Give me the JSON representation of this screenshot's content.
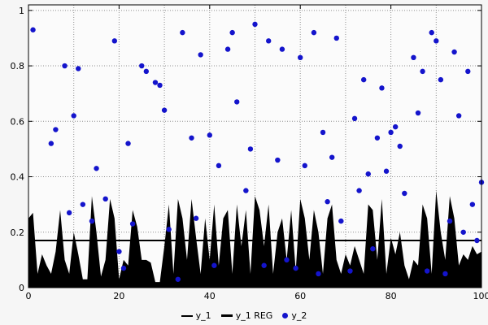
{
  "chart_data": {
    "type": "mixed",
    "subtypes": [
      "area",
      "hline",
      "scatter"
    ],
    "title": "",
    "xlabel": "",
    "ylabel": "",
    "xlim": [
      0,
      100
    ],
    "ylim": [
      0,
      1
    ],
    "y_headroom": 0.02,
    "x_ticks": [
      0,
      20,
      40,
      60,
      80,
      100
    ],
    "x_tick_labels": [
      "0",
      "20",
      "40",
      "60",
      "80",
      "100"
    ],
    "x_minor_step": 10,
    "y_ticks": [
      0,
      0.2,
      0.4,
      0.6,
      0.8,
      1
    ],
    "y_tick_labels": [
      "0",
      "0.2",
      "0.4",
      "0.6",
      "0.8",
      "1"
    ],
    "x_grid_step": 10,
    "grid": true,
    "legend_position": "bottom-center",
    "colors": {
      "page_bg": "#f6f6f6",
      "plot_bg": "#fbfbfb",
      "grid": "#909090",
      "border": "#000000",
      "area": "#000000",
      "reg_line": "#000000",
      "dots": "#1414cc",
      "text": "#000000"
    },
    "series": [
      {
        "name": "y_1",
        "type": "area",
        "color": "#000000",
        "x_start": 0,
        "x_step": 1,
        "values": [
          0.25,
          0.27,
          0.05,
          0.12,
          0.08,
          0.05,
          0.13,
          0.28,
          0.1,
          0.05,
          0.2,
          0.12,
          0.03,
          0.03,
          0.33,
          0.2,
          0.04,
          0.1,
          0.32,
          0.25,
          0.03,
          0.1,
          0.08,
          0.28,
          0.22,
          0.1,
          0.1,
          0.09,
          0.02,
          0.02,
          0.15,
          0.3,
          0.05,
          0.32,
          0.25,
          0.1,
          0.32,
          0.18,
          0.05,
          0.25,
          0.1,
          0.3,
          0.08,
          0.25,
          0.28,
          0.05,
          0.3,
          0.15,
          0.28,
          0.05,
          0.33,
          0.28,
          0.15,
          0.3,
          0.05,
          0.2,
          0.25,
          0.1,
          0.28,
          0.06,
          0.32,
          0.25,
          0.1,
          0.28,
          0.2,
          0.05,
          0.25,
          0.3,
          0.1,
          0.05,
          0.12,
          0.08,
          0.15,
          0.1,
          0.05,
          0.3,
          0.28,
          0.1,
          0.32,
          0.05,
          0.18,
          0.12,
          0.2,
          0.08,
          0.03,
          0.1,
          0.08,
          0.3,
          0.25,
          0.05,
          0.35,
          0.2,
          0.1,
          0.33,
          0.25,
          0.08,
          0.12,
          0.1,
          0.15,
          0.12,
          0.13
        ]
      },
      {
        "name": "y_1 REG",
        "type": "hline",
        "color": "#000000",
        "value": 0.17
      },
      {
        "name": "y_2",
        "type": "scatter",
        "color": "#1414cc",
        "marker": "dot",
        "point_radius": 3.2,
        "points": [
          [
            1,
            0.93
          ],
          [
            5,
            0.52
          ],
          [
            6,
            0.57
          ],
          [
            8,
            0.8
          ],
          [
            9,
            0.27
          ],
          [
            10,
            0.62
          ],
          [
            11,
            0.79
          ],
          [
            12,
            0.3
          ],
          [
            14,
            0.24
          ],
          [
            15,
            0.43
          ],
          [
            17,
            0.32
          ],
          [
            19,
            0.89
          ],
          [
            20,
            0.13
          ],
          [
            21,
            0.07
          ],
          [
            22,
            0.52
          ],
          [
            23,
            0.23
          ],
          [
            25,
            0.8
          ],
          [
            26,
            0.78
          ],
          [
            28,
            0.74
          ],
          [
            29,
            0.73
          ],
          [
            30,
            0.64
          ],
          [
            31,
            0.21
          ],
          [
            33,
            0.03
          ],
          [
            34,
            0.92
          ],
          [
            36,
            0.54
          ],
          [
            37,
            0.25
          ],
          [
            38,
            0.84
          ],
          [
            40,
            0.55
          ],
          [
            41,
            0.08
          ],
          [
            42,
            0.44
          ],
          [
            44,
            0.86
          ],
          [
            45,
            0.92
          ],
          [
            46,
            0.67
          ],
          [
            48,
            0.35
          ],
          [
            49,
            0.5
          ],
          [
            50,
            0.95
          ],
          [
            52,
            0.08
          ],
          [
            53,
            0.89
          ],
          [
            55,
            0.46
          ],
          [
            56,
            0.86
          ],
          [
            57,
            0.1
          ],
          [
            59,
            0.07
          ],
          [
            60,
            0.83
          ],
          [
            61,
            0.44
          ],
          [
            63,
            0.92
          ],
          [
            64,
            0.05
          ],
          [
            65,
            0.56
          ],
          [
            66,
            0.31
          ],
          [
            67,
            0.47
          ],
          [
            68,
            0.9
          ],
          [
            69,
            0.24
          ],
          [
            71,
            0.06
          ],
          [
            72,
            0.61
          ],
          [
            73,
            0.35
          ],
          [
            74,
            0.75
          ],
          [
            75,
            0.41
          ],
          [
            76,
            0.14
          ],
          [
            77,
            0.54
          ],
          [
            78,
            0.72
          ],
          [
            79,
            0.42
          ],
          [
            80,
            0.56
          ],
          [
            81,
            0.58
          ],
          [
            82,
            0.51
          ],
          [
            83,
            0.34
          ],
          [
            85,
            0.83
          ],
          [
            86,
            0.63
          ],
          [
            87,
            0.78
          ],
          [
            88,
            0.06
          ],
          [
            89,
            0.92
          ],
          [
            90,
            0.89
          ],
          [
            91,
            0.75
          ],
          [
            92,
            0.05
          ],
          [
            93,
            0.24
          ],
          [
            94,
            0.85
          ],
          [
            95,
            0.62
          ],
          [
            96,
            0.2
          ],
          [
            97,
            0.78
          ],
          [
            98,
            0.3
          ],
          [
            99,
            0.17
          ],
          [
            100,
            0.38
          ]
        ]
      }
    ]
  }
}
